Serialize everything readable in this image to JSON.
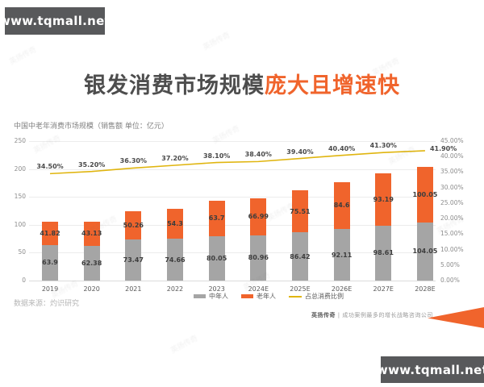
{
  "brand": {
    "top_left_url": "www.tqmall.net",
    "bottom_right_url": "www.tqmall.net"
  },
  "title": {
    "gray": "银发消费市场规模",
    "orange": "庞大且增速快"
  },
  "chart_data": {
    "type": "bar",
    "subtype": "stacked-bar-with-line",
    "subtitle": "中国中老年消费市场规模（销售额 单位：亿元）",
    "categories": [
      "2019",
      "2020",
      "2021",
      "2022",
      "2023",
      "2024E",
      "2025E",
      "2026E",
      "2027E",
      "2028E"
    ],
    "series": [
      {
        "name": "中年人",
        "color": "#a5a5a5",
        "values": [
          63.9,
          62.38,
          73.47,
          74.66,
          80.05,
          80.96,
          86.42,
          92.11,
          98.61,
          104.05
        ],
        "labels": [
          "63.9",
          "62.38",
          "73.47",
          "74.66",
          "80.05",
          "80.96",
          "86.42",
          "92.11",
          "98.61",
          "104.05"
        ]
      },
      {
        "name": "老年人",
        "color": "#f0642c",
        "values": [
          41.82,
          43.13,
          50.26,
          54.3,
          63.7,
          66.99,
          75.51,
          84.6,
          93.19,
          100.05
        ],
        "labels": [
          "41.82",
          "43.13",
          "50.26",
          "54.3",
          "63.7",
          "66.99",
          "75.51",
          "84.6",
          "93.19",
          "100.05"
        ]
      }
    ],
    "line_series": {
      "name": "占总消费比例",
      "color": "#e0b50f",
      "values_pct": [
        34.5,
        35.2,
        36.3,
        37.2,
        38.1,
        38.4,
        39.4,
        40.4,
        41.3,
        41.9
      ],
      "labels": [
        "34.50%",
        "35.20%",
        "36.30%",
        "37.20%",
        "38.10%",
        "38.40%",
        "39.40%",
        "40.40%",
        "41.30%",
        "41.90%"
      ]
    },
    "left_axis": {
      "min": 0,
      "max": 250,
      "step": 50,
      "ticks": [
        "250",
        "200",
        "150",
        "100",
        "50",
        "0"
      ]
    },
    "right_axis": {
      "min": 0,
      "max": 45,
      "step": 5,
      "ticks": [
        "45.00%",
        "40.00%",
        "35.00%",
        "30.00%",
        "25.00%",
        "20.00%",
        "15.00%",
        "10.00%",
        "5.00%",
        "0.00%"
      ]
    },
    "legend_position": "bottom",
    "grid": true
  },
  "footer": {
    "source": "数据来源：灼识研究",
    "brand_name": "英扬传奇",
    "brand_separator": "|",
    "brand_tagline": "成功案例最多的增长战略咨询公司"
  },
  "watermark_text": "英扬传奇"
}
